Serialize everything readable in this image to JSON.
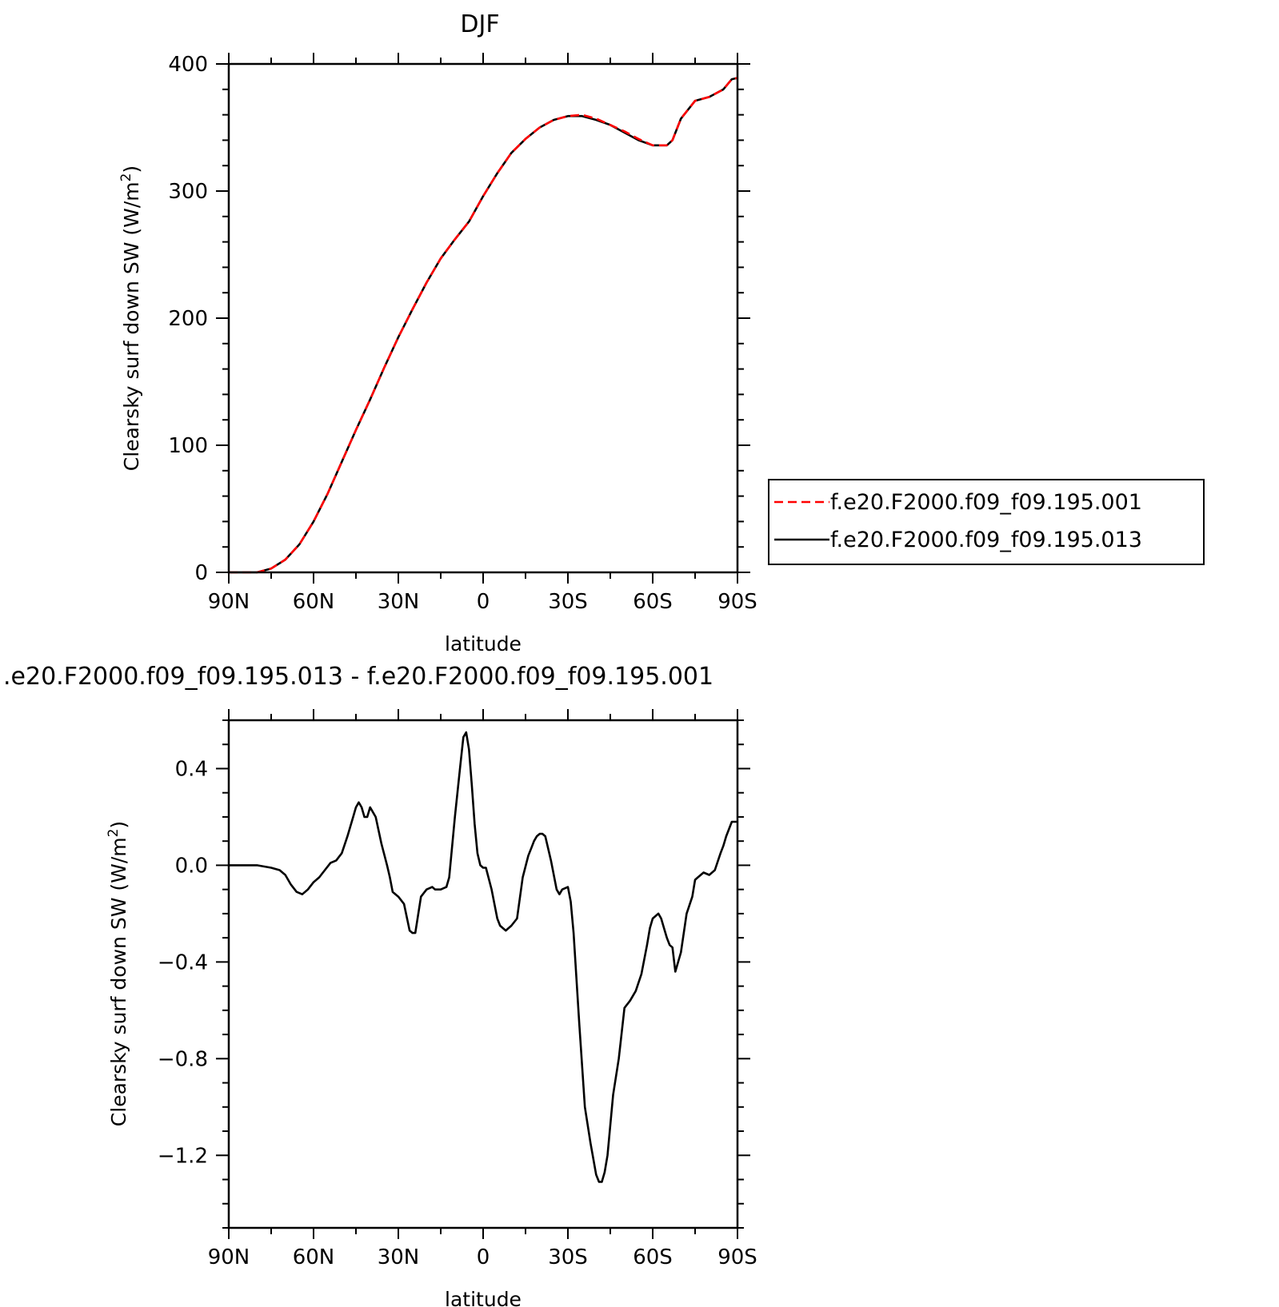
{
  "chart_data": [
    {
      "type": "line",
      "title": "DJF",
      "xlabel": "latitude",
      "ylabel": "Clearsky surf down SW (W/m",
      "ylabel_sup": "2",
      "ylabel_close": ")",
      "xlim": [
        90,
        -90
      ],
      "ylim": [
        0,
        400
      ],
      "x_ticks": [
        90,
        60,
        30,
        0,
        -30,
        -60,
        -90
      ],
      "x_tick_labels": [
        "90N",
        "60N",
        "30N",
        "0",
        "30S",
        "60S",
        "90S"
      ],
      "y_ticks": [
        0,
        100,
        200,
        300,
        400
      ],
      "y_tick_labels": [
        "0",
        "100",
        "200",
        "300",
        "400"
      ],
      "legend_position": "right",
      "series": [
        {
          "name": "f.e20.F2000.f09_f09.195.001",
          "color": "#ff0000",
          "style": "dashed",
          "x": [
            90,
            85,
            80,
            75,
            70,
            65,
            60,
            55,
            50,
            45,
            40,
            35,
            30,
            25,
            20,
            15,
            10,
            5,
            0,
            -5,
            -10,
            -15,
            -20,
            -25,
            -30,
            -35,
            -40,
            -45,
            -50,
            -55,
            -60,
            -65,
            -67,
            -70,
            -75,
            -80,
            -85,
            -88,
            -90
          ],
          "values": [
            0,
            0,
            0,
            3,
            10,
            22,
            40,
            62,
            87,
            112,
            136,
            161,
            185,
            207,
            228,
            247,
            262,
            276,
            296,
            314,
            330,
            341,
            350,
            356,
            359,
            360,
            357,
            352,
            347,
            341,
            336,
            336,
            340,
            357,
            371,
            374,
            380,
            388,
            389
          ]
        },
        {
          "name": "f.e20.F2000.f09_f09.195.013",
          "color": "#000000",
          "style": "solid",
          "x": [
            90,
            85,
            80,
            75,
            70,
            65,
            60,
            55,
            50,
            45,
            40,
            35,
            30,
            25,
            20,
            15,
            10,
            5,
            0,
            -5,
            -10,
            -15,
            -20,
            -25,
            -30,
            -35,
            -40,
            -45,
            -50,
            -55,
            -60,
            -65,
            -67,
            -70,
            -75,
            -80,
            -85,
            -88,
            -90
          ],
          "values": [
            0,
            0,
            0,
            3,
            10,
            22,
            40,
            62,
            87,
            112,
            136,
            161,
            185,
            207,
            228,
            247,
            262,
            276,
            296,
            314,
            330,
            341,
            350,
            356,
            359,
            359,
            356,
            352,
            346,
            340,
            336,
            336,
            340,
            357,
            371,
            374,
            380,
            388,
            389
          ]
        }
      ]
    },
    {
      "type": "line",
      "title": ".e20.F2000.f09_f09.195.013 - f.e20.F2000.f09_f09.195.001",
      "xlabel": "latitude",
      "ylabel": "Clearsky surf down SW (W/m",
      "ylabel_sup": "2",
      "ylabel_close": ")",
      "xlim": [
        90,
        -90
      ],
      "ylim": [
        -1.5,
        0.6
      ],
      "x_ticks": [
        90,
        60,
        30,
        0,
        -30,
        -60,
        -90
      ],
      "x_tick_labels": [
        "90N",
        "60N",
        "30N",
        "0",
        "30S",
        "60S",
        "90S"
      ],
      "y_ticks": [
        0.4,
        0.0,
        -0.4,
        -0.8,
        -1.2
      ],
      "y_tick_labels": [
        "0.4",
        "0.0",
        "−0.4",
        "−0.8",
        "−1.2"
      ],
      "series": [
        {
          "color": "#000000",
          "style": "solid",
          "x": [
            90,
            85,
            80,
            75,
            72,
            70,
            68,
            66,
            64,
            62,
            60,
            58,
            56,
            54,
            52,
            50,
            48,
            46,
            45,
            44,
            43,
            42,
            41,
            40,
            38,
            36,
            34,
            33,
            32,
            30,
            28,
            26,
            25,
            24,
            22,
            20,
            18,
            17,
            16,
            15,
            13,
            12,
            10,
            8,
            7,
            6,
            5,
            4,
            3,
            2,
            1,
            0,
            -1,
            -3,
            -5,
            -6,
            -8,
            -10,
            -12,
            -14,
            -16,
            -17,
            -18,
            -19,
            -20,
            -21,
            -22,
            -24,
            -26,
            -27,
            -28,
            -30,
            -31,
            -32,
            -34,
            -36,
            -38,
            -40,
            -41,
            -42,
            -43,
            -44,
            -46,
            -48,
            -50,
            -52,
            -54,
            -56,
            -57,
            -58,
            -59,
            -60,
            -62,
            -63,
            -64,
            -65,
            -66,
            -67,
            -68,
            -70,
            -72,
            -74,
            -75,
            -76,
            -78,
            -80,
            -82,
            -84,
            -85,
            -86,
            -88,
            -90
          ],
          "values": [
            0.0,
            0.0,
            0.0,
            -0.01,
            -0.02,
            -0.04,
            -0.08,
            -0.11,
            -0.12,
            -0.1,
            -0.07,
            -0.05,
            -0.02,
            0.01,
            0.02,
            0.05,
            0.12,
            0.2,
            0.24,
            0.26,
            0.24,
            0.2,
            0.2,
            0.24,
            0.2,
            0.09,
            0.0,
            -0.05,
            -0.11,
            -0.13,
            -0.16,
            -0.27,
            -0.28,
            -0.28,
            -0.13,
            -0.1,
            -0.09,
            -0.1,
            -0.1,
            -0.1,
            -0.09,
            -0.05,
            0.2,
            0.42,
            0.53,
            0.55,
            0.48,
            0.33,
            0.17,
            0.05,
            0.0,
            -0.01,
            -0.01,
            -0.1,
            -0.22,
            -0.25,
            -0.27,
            -0.25,
            -0.22,
            -0.05,
            0.04,
            0.07,
            0.1,
            0.12,
            0.13,
            0.13,
            0.12,
            0.02,
            -0.1,
            -0.12,
            -0.1,
            -0.09,
            -0.15,
            -0.28,
            -0.65,
            -1.0,
            -1.15,
            -1.28,
            -1.31,
            -1.31,
            -1.27,
            -1.2,
            -0.95,
            -0.8,
            -0.59,
            -0.56,
            -0.52,
            -0.45,
            -0.39,
            -0.33,
            -0.26,
            -0.22,
            -0.2,
            -0.22,
            -0.26,
            -0.3,
            -0.33,
            -0.34,
            -0.44,
            -0.36,
            -0.2,
            -0.13,
            -0.06,
            -0.05,
            -0.03,
            -0.04,
            -0.02,
            0.05,
            0.08,
            0.12,
            0.18,
            0.18
          ]
        }
      ]
    }
  ]
}
